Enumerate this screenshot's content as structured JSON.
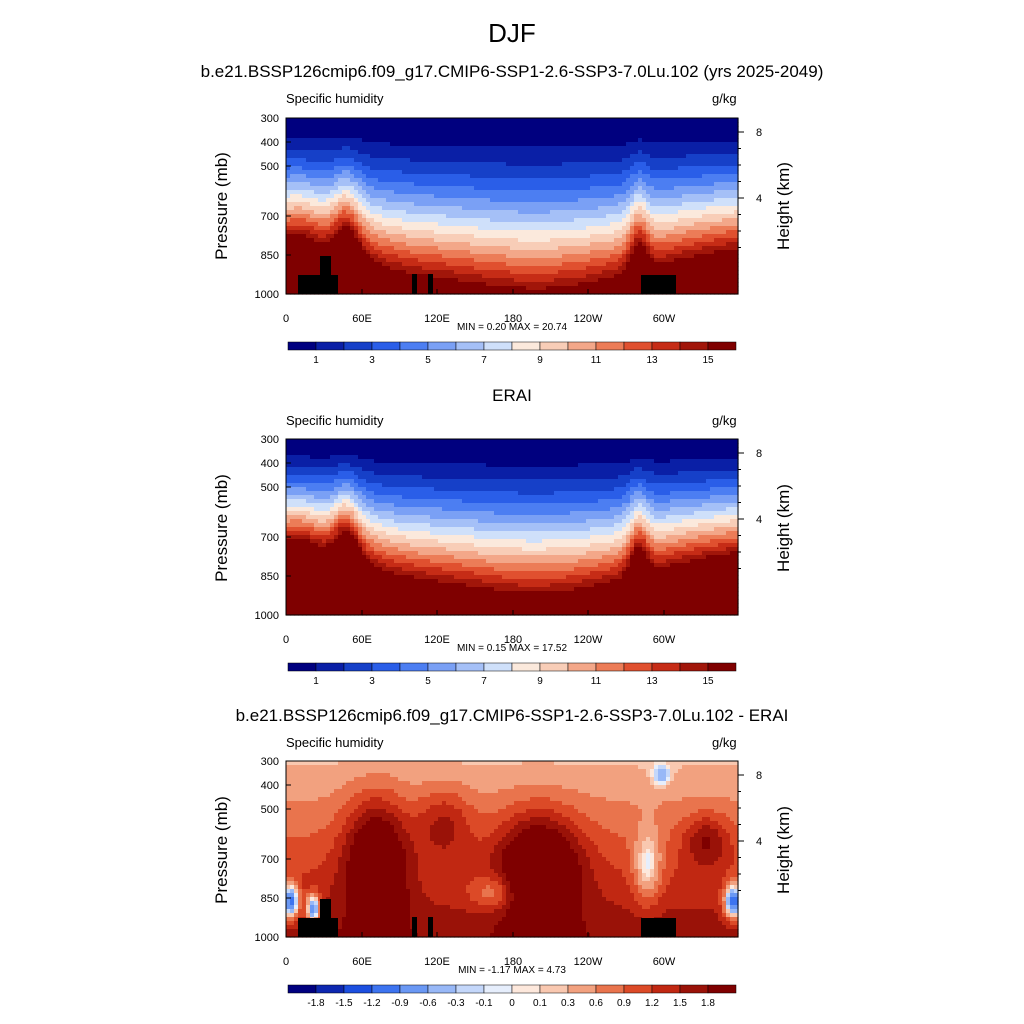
{
  "figure": {
    "title": "DJF"
  },
  "chart_data": [
    {
      "type": "heatmap",
      "title": "b.e21.BSSP126cmip6.f09_g17.CMIP6-SSP1-2.6-SSP3-7.0Lu.102 (yrs 2025-2049)",
      "variable": "Specific humidity",
      "units": "g/kg",
      "ylabel": "Pressure (mb)",
      "ylabel_right": "Height (km)",
      "x_ticks": [
        "0",
        "60E",
        "120E",
        "180",
        "120W",
        "60W"
      ],
      "y_ticks": [
        "300",
        "400",
        "500",
        "700",
        "850",
        "1000"
      ],
      "y_right_ticks": [
        "8",
        "4"
      ],
      "stats": "MIN =   0.20  MAX =  20.74",
      "colorbar_labels": [
        "1",
        "3",
        "5",
        "7",
        "9",
        "11",
        "13",
        "15"
      ],
      "field": "model"
    },
    {
      "type": "heatmap",
      "title": "ERAI",
      "variable": "Specific humidity",
      "units": "g/kg",
      "ylabel": "Pressure (mb)",
      "ylabel_right": "Height (km)",
      "x_ticks": [
        "0",
        "60E",
        "120E",
        "180",
        "120W",
        "60W"
      ],
      "y_ticks": [
        "300",
        "400",
        "500",
        "700",
        "850",
        "1000"
      ],
      "y_right_ticks": [
        "8",
        "4"
      ],
      "stats": "MIN =   0.15  MAX =  17.52",
      "colorbar_labels": [
        "1",
        "3",
        "5",
        "7",
        "9",
        "11",
        "13",
        "15"
      ],
      "field": "obs"
    },
    {
      "type": "heatmap",
      "title": "b.e21.BSSP126cmip6.f09_g17.CMIP6-SSP1-2.6-SSP3-7.0Lu.102 - ERAI",
      "variable": "Specific humidity",
      "units": "g/kg",
      "ylabel": "Pressure (mb)",
      "ylabel_right": "Height (km)",
      "x_ticks": [
        "0",
        "60E",
        "120E",
        "180",
        "120W",
        "60W"
      ],
      "y_ticks": [
        "300",
        "400",
        "500",
        "700",
        "850",
        "1000"
      ],
      "y_right_ticks": [
        "8",
        "4"
      ],
      "stats": "MIN =  -1.17  MAX =   4.73",
      "colorbar_labels": [
        "-1.8",
        "-1.5",
        "-1.2",
        "-0.9",
        "-0.6",
        "-0.3",
        "-0.1",
        "0",
        "0.1",
        "0.3",
        "0.6",
        "0.9",
        "1.2",
        "1.5",
        "1.8"
      ],
      "field": "diff"
    }
  ],
  "colors": {
    "full_field": [
      "#00007f",
      "#0a1fa6",
      "#1640c8",
      "#2a5ee8",
      "#4c7ef2",
      "#7aa0f5",
      "#a5c0f7",
      "#cfe0fa",
      "#fbe9dc",
      "#f8cdb7",
      "#f3a789",
      "#ec7c57",
      "#e0502f",
      "#c62c16",
      "#a1160a",
      "#7f0000"
    ],
    "difference": [
      "#00007f",
      "#0d27b0",
      "#1c4fe0",
      "#3d74f0",
      "#6a98f4",
      "#98b8f7",
      "#c4d7fa",
      "#e6eefc",
      "#fde8dc",
      "#f9c8b0",
      "#f2a17f",
      "#e9744d",
      "#dc4a27",
      "#c12812",
      "#9a1208",
      "#7f0000"
    ],
    "topography": "#000000"
  }
}
